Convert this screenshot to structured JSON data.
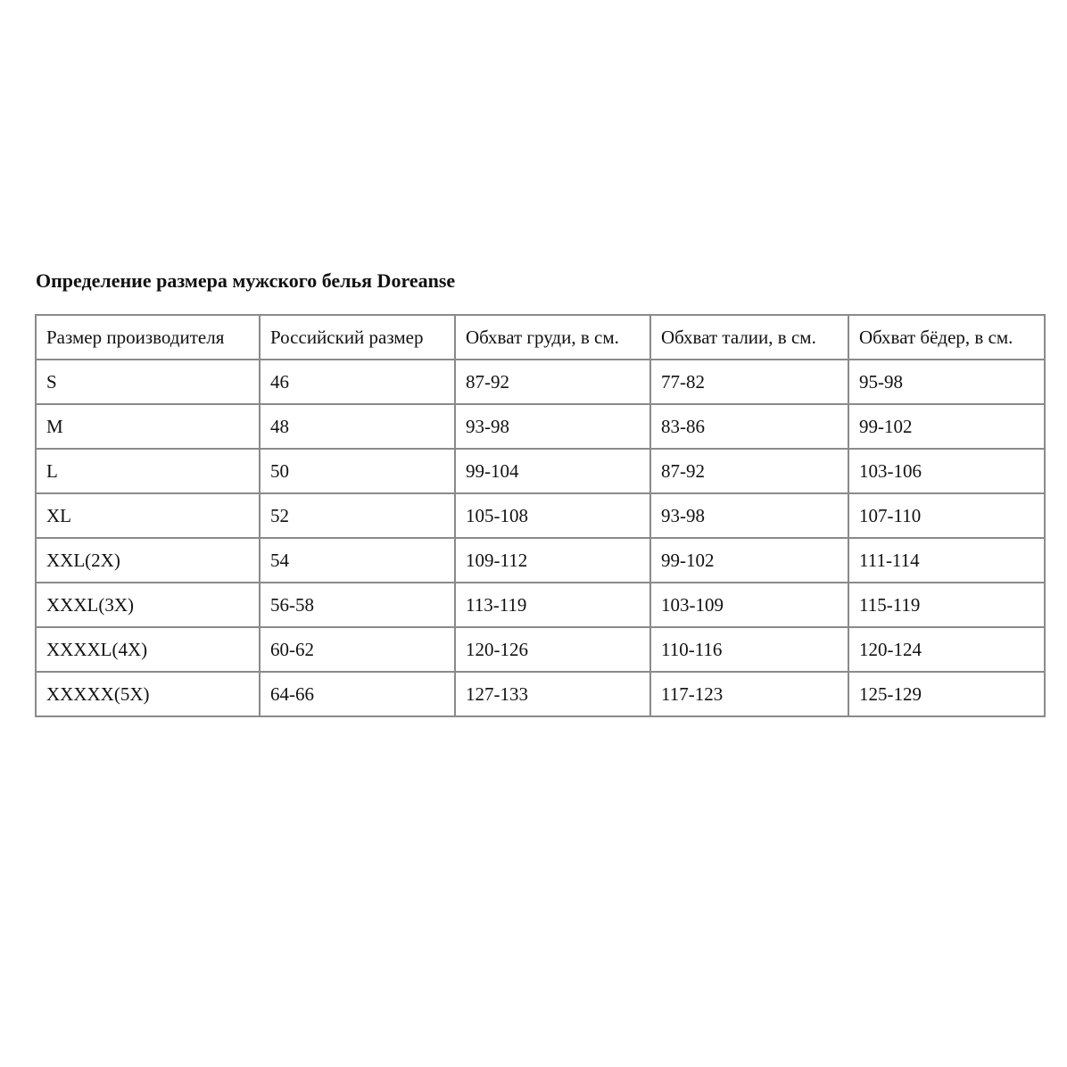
{
  "title": "Определение размера мужского белья Doreanse",
  "table": {
    "headers": [
      "Размер производителя",
      "Российский размер",
      "Обхват груди, в см.",
      "Обхват талии, в см.",
      "Обхват бёдер, в см."
    ],
    "rows": [
      [
        "S",
        "46",
        "87-92",
        "77-82",
        "95-98"
      ],
      [
        "M",
        "48",
        "93-98",
        "83-86",
        "99-102"
      ],
      [
        "L",
        "50",
        "99-104",
        "87-92",
        "103-106"
      ],
      [
        "XL",
        "52",
        "105-108",
        "93-98",
        "107-110"
      ],
      [
        "XXL(2X)",
        "54",
        "109-112",
        "99-102",
        "111-114"
      ],
      [
        "XXXL(3X)",
        "56-58",
        "113-119",
        "103-109",
        "115-119"
      ],
      [
        "XXXXL(4X)",
        "60-62",
        "120-126",
        "110-116",
        "120-124"
      ],
      [
        "XXXXX(5X)",
        "64-66",
        "127-133",
        "117-123",
        "125-129"
      ]
    ]
  }
}
